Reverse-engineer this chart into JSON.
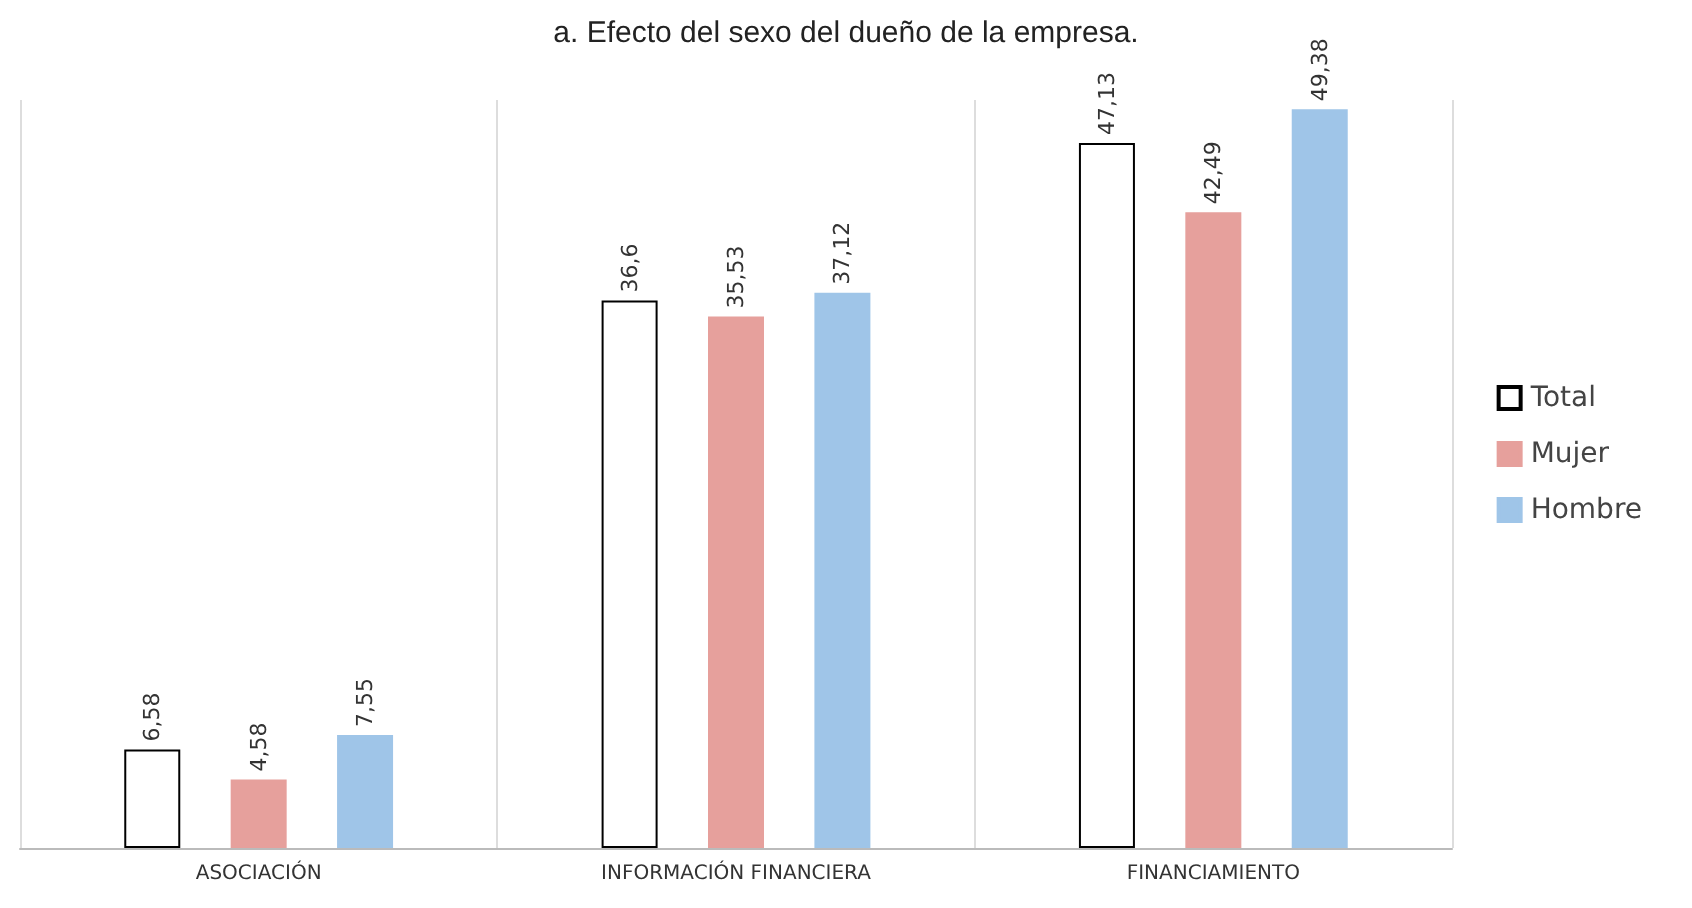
{
  "chart_data": {
    "type": "bar",
    "title": "a. Efecto del sexo del dueño de la empresa.",
    "categories": [
      "ASOCIACIÓN",
      "INFORMACIÓN FINANCIERA",
      "FINANCIAMIENTO"
    ],
    "series": [
      {
        "name": "Total",
        "color": "#ffffff",
        "values": [
          6.58,
          36.6,
          47.13
        ],
        "value_labels": [
          "6,58",
          "36,6",
          "47,13"
        ]
      },
      {
        "name": "Mujer",
        "color": "#e6a09c",
        "values": [
          4.58,
          35.53,
          42.49
        ],
        "value_labels": [
          "4,58",
          "35,53",
          "42,49"
        ]
      },
      {
        "name": "Hombre",
        "color": "#9fc5e8",
        "values": [
          7.55,
          37.12,
          49.38
        ],
        "value_labels": [
          "7,55",
          "37,12",
          "49,38"
        ]
      }
    ],
    "grid": "x",
    "legend": "right"
  }
}
